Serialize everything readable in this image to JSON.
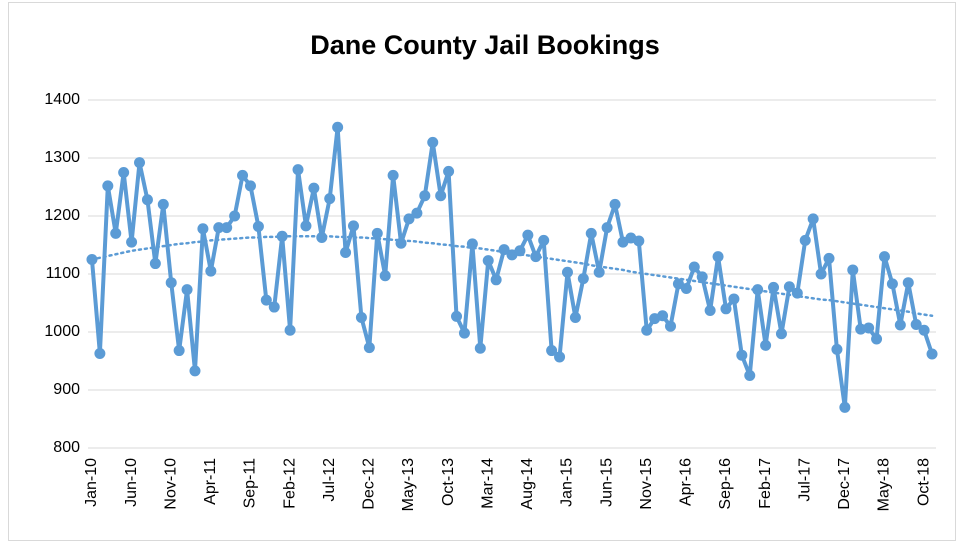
{
  "chart_data": {
    "type": "line",
    "title": "Dane County Jail Bookings",
    "categories": [
      "Jan-10",
      null,
      null,
      null,
      null,
      "Jun-10",
      null,
      null,
      null,
      null,
      "Nov-10",
      null,
      null,
      null,
      null,
      "Apr-11",
      null,
      null,
      null,
      null,
      "Sep-11",
      null,
      null,
      null,
      null,
      "Feb-12",
      null,
      null,
      null,
      null,
      "Jul-12",
      null,
      null,
      null,
      null,
      "Dec-12",
      null,
      null,
      null,
      null,
      "May-13",
      null,
      null,
      null,
      null,
      "Oct-13",
      null,
      null,
      null,
      null,
      "Mar-14",
      null,
      null,
      null,
      null,
      "Aug-14",
      null,
      null,
      null,
      null,
      "Jan-15",
      null,
      null,
      null,
      null,
      "Jun-15",
      null,
      null,
      null,
      null,
      "Nov-15",
      null,
      null,
      null,
      null,
      "Apr-16",
      null,
      null,
      null,
      null,
      "Sep-16",
      null,
      null,
      null,
      null,
      "Feb-17",
      null,
      null,
      null,
      null,
      "Jul-17",
      null,
      null,
      null,
      null,
      "Dec-17",
      null,
      null,
      null,
      null,
      "May-18",
      null,
      null,
      null,
      null,
      "Oct-18",
      null
    ],
    "series": [
      {
        "color": "#5b9bd5",
        "values": [
          1125,
          963,
          1252,
          1170,
          1275,
          1155,
          1292,
          1228,
          1118,
          1220,
          1085,
          968,
          1073,
          933,
          1178,
          1105,
          1180,
          1180,
          1200,
          1270,
          1252,
          1182,
          1055,
          1043,
          1165,
          1003,
          1280,
          1183,
          1248,
          1163,
          1230,
          1353,
          1137,
          1183,
          1025,
          973,
          1170,
          1097,
          1270,
          1153,
          1195,
          1205,
          1235,
          1327,
          1235,
          1277,
          1027,
          998,
          1152,
          972,
          1123,
          1090,
          1142,
          1133,
          1140,
          1167,
          1130,
          1158,
          968,
          957,
          1103,
          1025,
          1092,
          1170,
          1103,
          1180,
          1220,
          1155,
          1162,
          1157,
          1003,
          1023,
          1028,
          1010,
          1083,
          1075,
          1112,
          1095,
          1037,
          1130,
          1040,
          1057,
          960,
          925,
          1073,
          977,
          1077,
          997,
          1078,
          1067,
          1158,
          1195,
          1100,
          1127,
          970,
          870,
          1107,
          1005,
          1007,
          988,
          1130,
          1083,
          1012,
          1085,
          1013,
          1003,
          962
        ]
      },
      {
        "color": "#5b9bd5",
        "dotted": true,
        "values": [
          1125,
          1128,
          1131,
          1134,
          1137,
          1140,
          1142,
          1144,
          1146,
          1148,
          1150,
          1152,
          1153,
          1155,
          1156,
          1158,
          1159,
          1160,
          1161,
          1162,
          1163,
          1163,
          1164,
          1164,
          1165,
          1165,
          1165,
          1165,
          1165,
          1165,
          1165,
          1164,
          1164,
          1163,
          1163,
          1162,
          1161,
          1160,
          1159,
          1158,
          1157,
          1156,
          1154,
          1153,
          1151,
          1150,
          1148,
          1147,
          1145,
          1144,
          1142,
          1140,
          1138,
          1136,
          1134,
          1132,
          1130,
          1128,
          1126,
          1124,
          1122,
          1120,
          1118,
          1115,
          1113,
          1111,
          1109,
          1107,
          1104,
          1102,
          1100,
          1098,
          1096,
          1094,
          1092,
          1090,
          1088,
          1086,
          1084,
          1082,
          1080,
          1078,
          1076,
          1074,
          1072,
          1070,
          1068,
          1066,
          1064,
          1062,
          1060,
          1058,
          1056,
          1055,
          1053,
          1051,
          1049,
          1047,
          1045,
          1043,
          1041,
          1039,
          1037,
          1035,
          1032,
          1030,
          1028
        ]
      }
    ],
    "ylim": [
      800,
      1400
    ],
    "yticks": [
      800,
      900,
      1000,
      1100,
      1200,
      1300,
      1400
    ],
    "grid": true
  }
}
